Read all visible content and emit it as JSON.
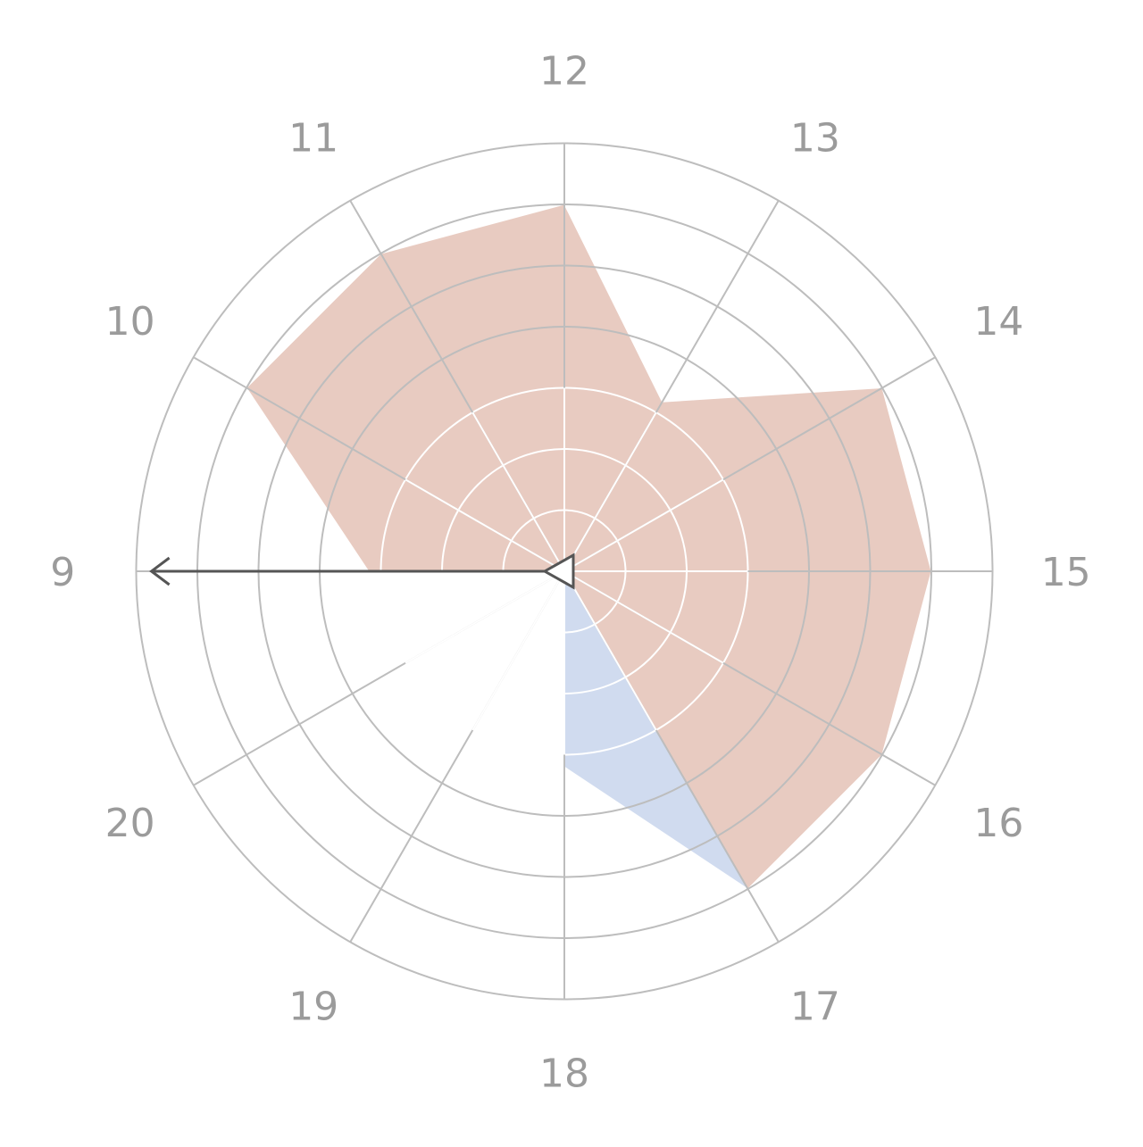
{
  "chart_data": {
    "type": "radar",
    "categories": [
      "12",
      "13",
      "14",
      "15",
      "16",
      "17",
      "18",
      "19",
      "20",
      "9",
      "10",
      "11"
    ],
    "rmax": 7,
    "levels": 7,
    "series": [
      {
        "values": [
          6,
          0,
          0,
          0,
          0,
          6,
          3.2,
          0,
          0,
          3.2,
          0,
          0
        ],
        "color": "#d0dbef"
      },
      {
        "values": [
          6,
          3.2,
          6,
          6,
          6,
          6,
          0,
          0,
          0,
          3.2,
          6,
          6
        ],
        "color": "#e8cbc1"
      }
    ],
    "pointer": {
      "direction_category": "9",
      "color": "#555555"
    }
  }
}
